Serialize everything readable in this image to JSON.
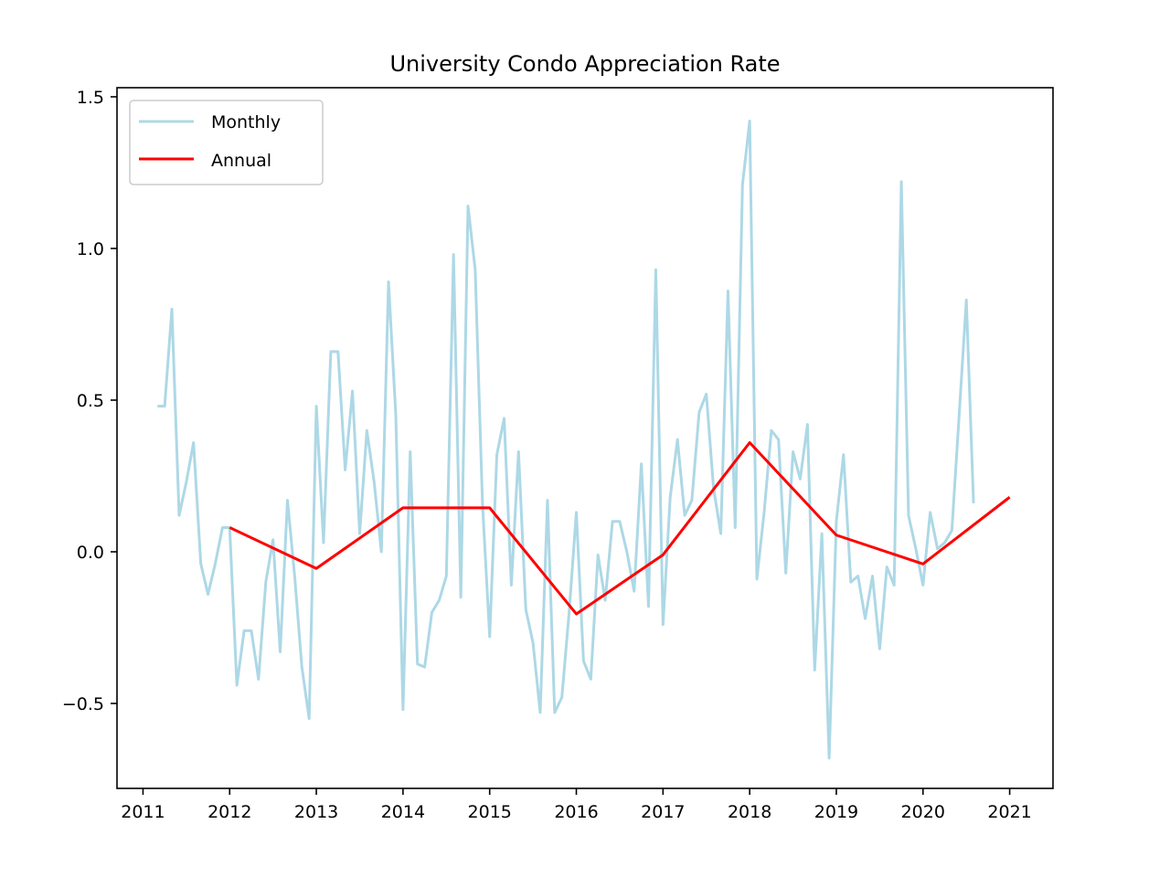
{
  "chart_data": {
    "type": "line",
    "title": "University Condo Appreciation Rate",
    "xlabel": "",
    "ylabel": "",
    "xlim": [
      2010.7,
      2021.5
    ],
    "ylim": [
      -0.78,
      1.53
    ],
    "x_ticks": [
      2011,
      2012,
      2013,
      2014,
      2015,
      2016,
      2017,
      2018,
      2019,
      2020,
      2021
    ],
    "y_ticks": [
      -0.5,
      0.0,
      0.5,
      1.0,
      1.5
    ],
    "y_tick_labels": [
      "−0.5",
      "0.0",
      "0.5",
      "1.0",
      "1.5"
    ],
    "grid": false,
    "legend": {
      "placement": "upper-left",
      "entries": [
        "Monthly",
        "Annual"
      ]
    },
    "colors": {
      "Monthly": "#add8e6",
      "Annual": "#ff0000"
    },
    "series": [
      {
        "name": "Monthly",
        "color": "#add8e6",
        "points": [
          [
            2011.167,
            0.48
          ],
          [
            2011.25,
            0.48
          ],
          [
            2011.333,
            0.8
          ],
          [
            2011.417,
            0.12
          ],
          [
            2011.5,
            0.23
          ],
          [
            2011.583,
            0.36
          ],
          [
            2011.667,
            -0.04
          ],
          [
            2011.75,
            -0.14
          ],
          [
            2011.833,
            -0.04
          ],
          [
            2011.917,
            0.08
          ],
          [
            2012.0,
            0.08
          ],
          [
            2012.083,
            -0.44
          ],
          [
            2012.167,
            -0.26
          ],
          [
            2012.25,
            -0.26
          ],
          [
            2012.333,
            -0.42
          ],
          [
            2012.417,
            -0.1
          ],
          [
            2012.5,
            0.04
          ],
          [
            2012.583,
            -0.33
          ],
          [
            2012.667,
            0.17
          ],
          [
            2012.75,
            -0.08
          ],
          [
            2012.833,
            -0.38
          ],
          [
            2012.917,
            -0.55
          ],
          [
            2013.0,
            0.48
          ],
          [
            2013.083,
            0.03
          ],
          [
            2013.167,
            0.66
          ],
          [
            2013.25,
            0.66
          ],
          [
            2013.333,
            0.27
          ],
          [
            2013.417,
            0.53
          ],
          [
            2013.5,
            0.06
          ],
          [
            2013.583,
            0.4
          ],
          [
            2013.667,
            0.23
          ],
          [
            2013.75,
            0.0
          ],
          [
            2013.833,
            0.89
          ],
          [
            2013.917,
            0.45
          ],
          [
            2014.0,
            -0.52
          ],
          [
            2014.083,
            0.33
          ],
          [
            2014.167,
            -0.37
          ],
          [
            2014.25,
            -0.38
          ],
          [
            2014.333,
            -0.2
          ],
          [
            2014.417,
            -0.16
          ],
          [
            2014.5,
            -0.08
          ],
          [
            2014.583,
            0.98
          ],
          [
            2014.667,
            -0.15
          ],
          [
            2014.75,
            1.14
          ],
          [
            2014.833,
            0.93
          ],
          [
            2014.917,
            0.16
          ],
          [
            2015.0,
            -0.28
          ],
          [
            2015.083,
            0.32
          ],
          [
            2015.167,
            0.44
          ],
          [
            2015.25,
            -0.11
          ],
          [
            2015.333,
            0.33
          ],
          [
            2015.417,
            -0.19
          ],
          [
            2015.5,
            -0.3
          ],
          [
            2015.583,
            -0.53
          ],
          [
            2015.667,
            0.17
          ],
          [
            2015.75,
            -0.53
          ],
          [
            2015.833,
            -0.48
          ],
          [
            2015.917,
            -0.2
          ],
          [
            2016.0,
            0.13
          ],
          [
            2016.083,
            -0.36
          ],
          [
            2016.167,
            -0.42
          ],
          [
            2016.25,
            -0.01
          ],
          [
            2016.333,
            -0.16
          ],
          [
            2016.417,
            0.1
          ],
          [
            2016.5,
            0.1
          ],
          [
            2016.583,
            0.0
          ],
          [
            2016.667,
            -0.13
          ],
          [
            2016.75,
            0.29
          ],
          [
            2016.833,
            -0.18
          ],
          [
            2016.917,
            0.93
          ],
          [
            2017.0,
            -0.24
          ],
          [
            2017.083,
            0.18
          ],
          [
            2017.167,
            0.37
          ],
          [
            2017.25,
            0.12
          ],
          [
            2017.333,
            0.17
          ],
          [
            2017.417,
            0.46
          ],
          [
            2017.5,
            0.52
          ],
          [
            2017.583,
            0.21
          ],
          [
            2017.667,
            0.06
          ],
          [
            2017.75,
            0.86
          ],
          [
            2017.833,
            0.08
          ],
          [
            2017.917,
            1.21
          ],
          [
            2018.0,
            1.42
          ],
          [
            2018.083,
            -0.09
          ],
          [
            2018.167,
            0.13
          ],
          [
            2018.25,
            0.4
          ],
          [
            2018.333,
            0.37
          ],
          [
            2018.417,
            -0.07
          ],
          [
            2018.5,
            0.33
          ],
          [
            2018.583,
            0.24
          ],
          [
            2018.667,
            0.42
          ],
          [
            2018.75,
            -0.39
          ],
          [
            2018.833,
            0.06
          ],
          [
            2018.917,
            -0.68
          ],
          [
            2019.0,
            0.1
          ],
          [
            2019.083,
            0.32
          ],
          [
            2019.167,
            -0.1
          ],
          [
            2019.25,
            -0.08
          ],
          [
            2019.333,
            -0.22
          ],
          [
            2019.417,
            -0.08
          ],
          [
            2019.5,
            -0.32
          ],
          [
            2019.583,
            -0.05
          ],
          [
            2019.667,
            -0.11
          ],
          [
            2019.75,
            1.22
          ],
          [
            2019.833,
            0.12
          ],
          [
            2019.917,
            0.01
          ],
          [
            2020.0,
            -0.11
          ],
          [
            2020.083,
            0.13
          ],
          [
            2020.167,
            0.01
          ],
          [
            2020.25,
            0.03
          ],
          [
            2020.333,
            0.07
          ],
          [
            2020.417,
            0.45
          ],
          [
            2020.5,
            0.83
          ],
          [
            2020.583,
            0.16
          ]
        ]
      },
      {
        "name": "Annual",
        "color": "#ff0000",
        "points": [
          [
            2012,
            0.08
          ],
          [
            2013,
            -0.055
          ],
          [
            2014,
            0.145
          ],
          [
            2015,
            0.145
          ],
          [
            2016,
            -0.205
          ],
          [
            2017,
            -0.01
          ],
          [
            2018,
            0.36
          ],
          [
            2019,
            0.055
          ],
          [
            2020,
            -0.04
          ],
          [
            2021,
            0.18
          ]
        ]
      }
    ]
  }
}
